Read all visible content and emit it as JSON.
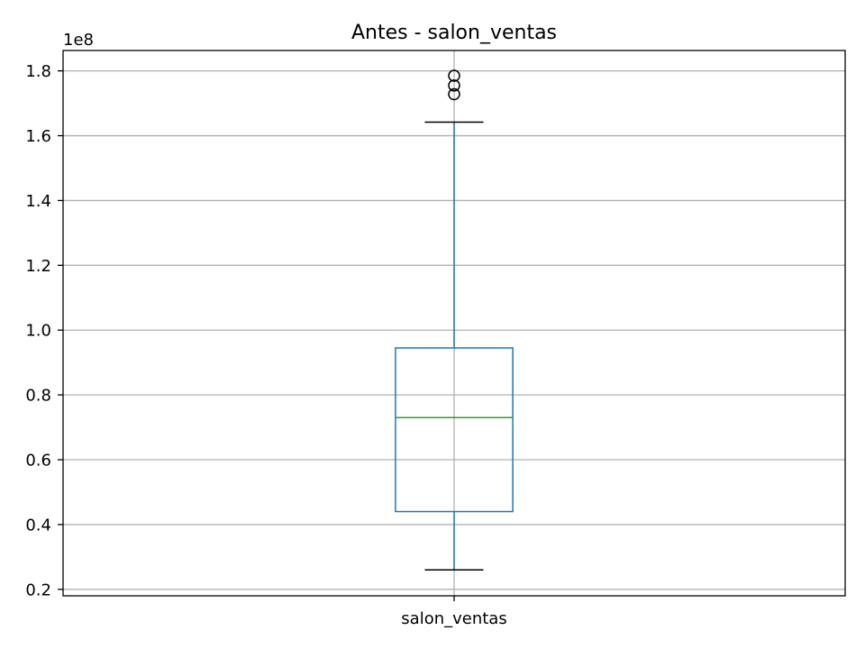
{
  "chart_data": {
    "type": "box",
    "title": "Antes - salon_ventas",
    "xlabel": "",
    "ylabel": "",
    "offset_label": "1e8",
    "categories": [
      "salon_ventas"
    ],
    "ylim": [
      0.18,
      1.863
    ],
    "yticks": [
      0.2,
      0.4,
      0.6,
      0.8,
      1.0,
      1.2,
      1.4,
      1.6,
      1.8
    ],
    "ytick_labels": [
      "0.2",
      "0.4",
      "0.6",
      "0.8",
      "1.0",
      "1.2",
      "1.4",
      "1.6",
      "1.8"
    ],
    "grid": true,
    "boxes": [
      {
        "category": "salon_ventas",
        "whisker_low": 0.26,
        "q1": 0.44,
        "median": 0.73,
        "q3": 0.945,
        "whisker_high": 1.642,
        "outliers": [
          1.728,
          1.755,
          1.785
        ]
      }
    ],
    "colors": {
      "box": "#1f77b4",
      "median": "#2ca02c",
      "caps": "#000000",
      "outlier": "#000000",
      "grid": "#b0b0b0"
    }
  }
}
